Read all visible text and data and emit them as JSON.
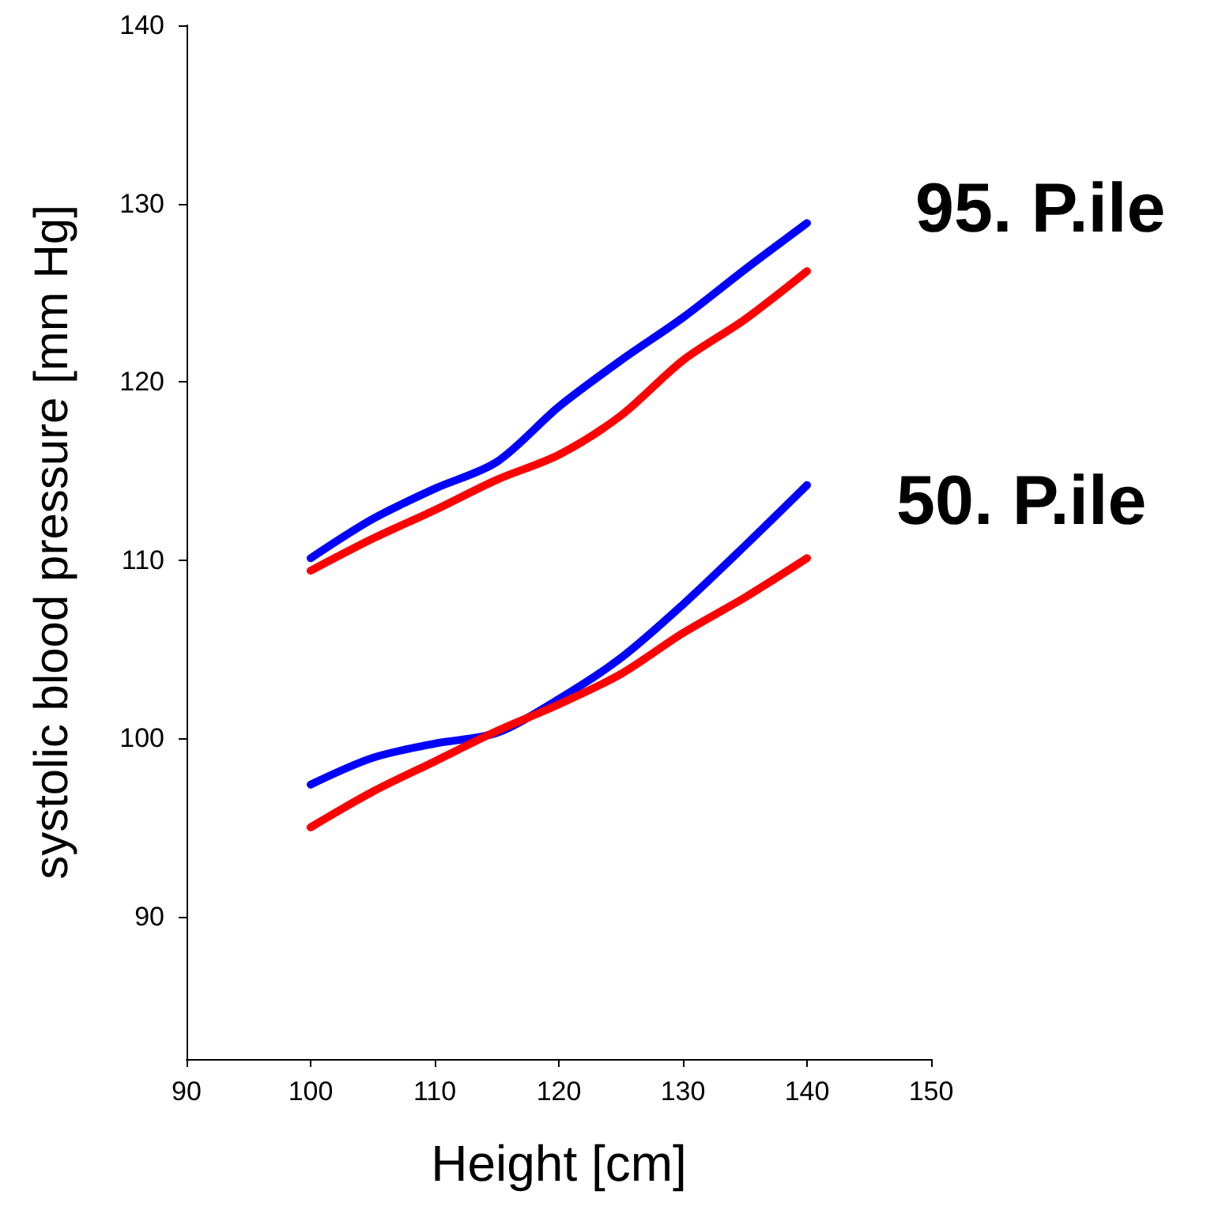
{
  "chart_data": {
    "type": "line",
    "xlabel": "Height [cm]",
    "ylabel": "systolic blood pressure [mm Hg]",
    "x": [
      100,
      105,
      110,
      115,
      120,
      125,
      130,
      135,
      140
    ],
    "series": [
      {
        "color": "#0000ff",
        "values": [
          110.1,
          112.3,
          114.0,
          115.5,
          118.6,
          121.2,
          123.6,
          126.3,
          128.9
        ]
      },
      {
        "color": "#ff0000",
        "values": [
          109.4,
          111.2,
          112.8,
          114.5,
          115.9,
          118.1,
          121.2,
          123.5,
          126.2
        ]
      },
      {
        "color": "#0000ff",
        "values": [
          97.4,
          98.9,
          99.7,
          100.3,
          102.2,
          104.5,
          107.5,
          110.8,
          114.2
        ]
      },
      {
        "color": "#ff0000",
        "values": [
          95.0,
          97.0,
          98.7,
          100.4,
          101.9,
          103.6,
          105.9,
          107.9,
          110.1
        ]
      }
    ],
    "xlim": [
      90,
      150
    ],
    "xticks": [
      90,
      100,
      110,
      120,
      130,
      140,
      150
    ],
    "ylim": [
      82,
      140
    ],
    "yticks": [
      90,
      100,
      110,
      120,
      130,
      140
    ],
    "annotations": [
      "95. P.ile",
      "50. P.ile"
    ],
    "grid": false,
    "marker": "none",
    "line_style": "solid"
  }
}
